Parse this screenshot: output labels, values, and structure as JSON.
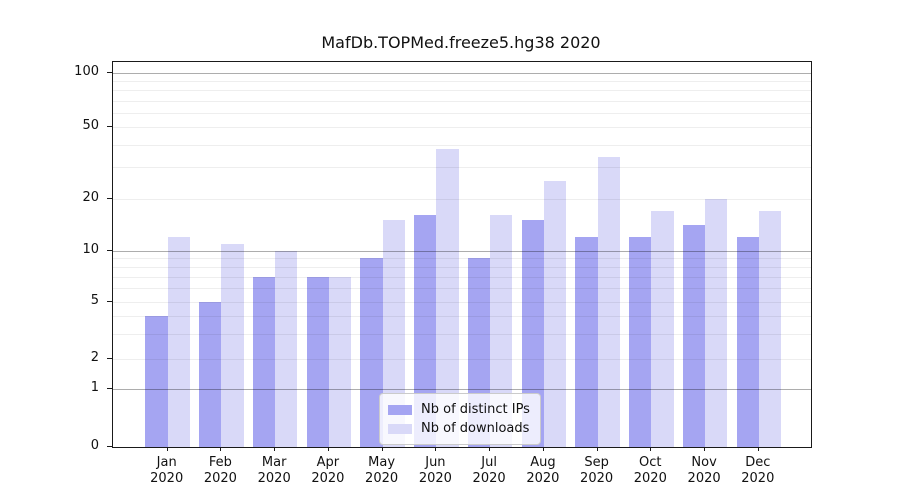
{
  "chart_data": {
    "type": "bar",
    "title": "MafDb.TOPMed.freeze5.hg38 2020",
    "categories": [
      "Jan 2020",
      "Feb 2020",
      "Mar 2020",
      "Apr 2020",
      "May 2020",
      "Jun 2020",
      "Jul 2020",
      "Aug 2020",
      "Sep 2020",
      "Oct 2020",
      "Nov 2020",
      "Dec 2020"
    ],
    "months": [
      "Jan",
      "Feb",
      "Mar",
      "Apr",
      "May",
      "Jun",
      "Jul",
      "Aug",
      "Sep",
      "Oct",
      "Nov",
      "Dec"
    ],
    "year": "2020",
    "series": [
      {
        "name": "Nb of distinct IPs",
        "color": "#a5a5f2",
        "values": [
          4,
          5,
          7,
          7,
          9,
          16,
          9,
          15,
          12,
          12,
          14,
          12
        ]
      },
      {
        "name": "Nb of downloads",
        "color": "#d9d9f8",
        "values": [
          12,
          11,
          10,
          7,
          15,
          38,
          16,
          25,
          34,
          17,
          20,
          17
        ]
      }
    ],
    "y_axis": {
      "scale": "log-like with zero baseline",
      "ticks": [
        0,
        1,
        2,
        5,
        10,
        20,
        50,
        100
      ],
      "minor_gridlines": [
        3,
        4,
        6,
        7,
        8,
        9,
        30,
        40,
        60,
        70,
        80,
        90
      ],
      "emphasized_gridlines": [
        1,
        10,
        100
      ],
      "ylim": [
        0,
        100
      ]
    },
    "legend": {
      "position": "bottom-center",
      "items": [
        "Nb of distinct IPs",
        "Nb of downloads"
      ]
    },
    "grid": true,
    "background_color": "#ffffff",
    "text_color": "#111111"
  }
}
